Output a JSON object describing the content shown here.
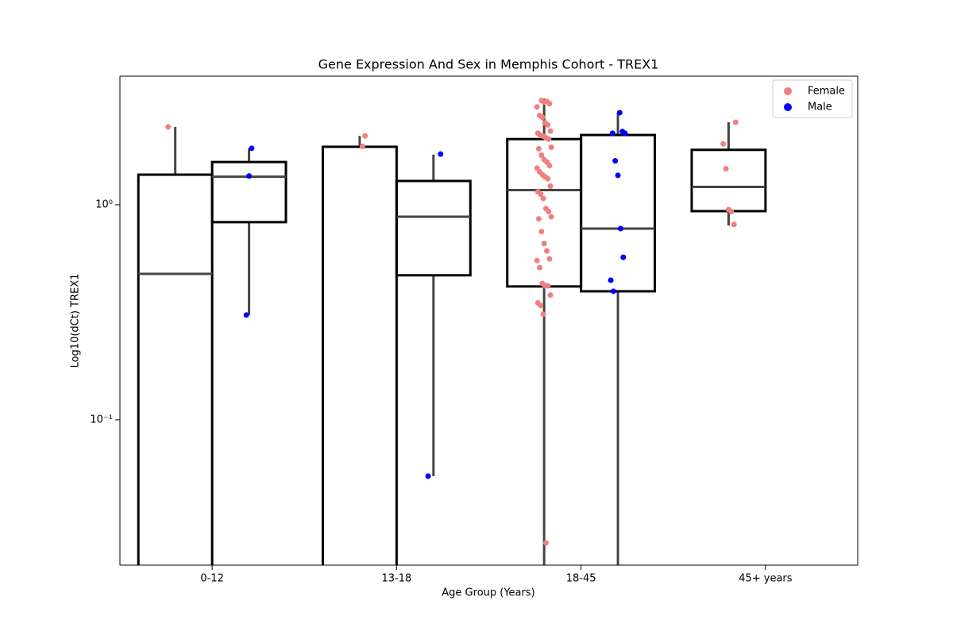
{
  "chart_data": {
    "type": "box",
    "title": "Gene Expression And Sex in Memphis Cohort - TREX1",
    "x_label": "Age Group (Years)",
    "y_label": "Log10(dCt) TREX1",
    "categories": [
      "0-12",
      "13-18",
      "18-45",
      "45+ years"
    ],
    "log_scale": true,
    "ylim": [
      0.0211,
      3.96
    ],
    "yticks": [
      {
        "value": 0.1,
        "label": "10⁻¹"
      },
      {
        "value": 1,
        "label": "10⁰"
      }
    ],
    "legend": "upper right",
    "series": [
      {
        "name": "Female",
        "color": "#f08080",
        "boxes": [
          {
            "q1": 0.015,
            "median": 0.477,
            "q3": 1.38,
            "whislo": 0.01,
            "whishi": 2.3
          },
          {
            "q1": 0.012,
            "median": 0.018,
            "q3": 1.86,
            "whislo": 0.008,
            "whishi": 2.09
          },
          {
            "q1": 0.417,
            "median": 1.17,
            "q3": 2.02,
            "whislo": 0.01,
            "whishi": 3.12
          },
          {
            "q1": 0.934,
            "median": 1.21,
            "q3": 1.8,
            "whislo": 0.8,
            "whishi": 2.42
          }
        ],
        "points": [
          [
            2.3
          ],
          [
            1.87,
            2.09
          ],
          [
            3.05,
            3.0,
            3.02,
            2.95,
            2.85,
            2.6,
            2.55,
            2.4,
            2.35,
            2.2,
            2.15,
            2.1,
            2.08,
            2.05,
            2.02,
            1.85,
            1.82,
            1.7,
            1.62,
            1.58,
            1.52,
            1.48,
            1.42,
            1.38,
            1.35,
            1.32,
            1.22,
            1.15,
            1.12,
            1.07,
            0.96,
            0.93,
            0.88,
            0.86,
            0.75,
            0.66,
            0.61,
            0.56,
            0.55,
            0.51,
            0.43,
            0.42,
            0.42,
            0.38,
            0.35,
            0.34,
            0.31,
            0.0268
          ],
          [
            2.42,
            1.92,
            1.47,
            0.95,
            0.93,
            0.81
          ]
        ]
      },
      {
        "name": "Male",
        "color": "#0000ff",
        "boxes": [
          {
            "q1": 0.83,
            "median": 1.35,
            "q3": 1.58,
            "whislo": 0.307,
            "whishi": 1.83
          },
          {
            "q1": 0.47,
            "median": 0.88,
            "q3": 1.29,
            "whislo": 0.0547,
            "whishi": 1.71
          },
          {
            "q1": 0.396,
            "median": 0.775,
            "q3": 2.11,
            "whislo": 0.01,
            "whishi": 2.68
          },
          null
        ],
        "points": [
          [
            0.307,
            1.36,
            1.83
          ],
          [
            1.72,
            0.0547
          ],
          [
            2.68,
            2.19,
            2.15,
            2.15,
            1.6,
            1.37,
            0.775,
            0.57,
            0.446,
            0.396
          ],
          []
        ]
      }
    ]
  }
}
